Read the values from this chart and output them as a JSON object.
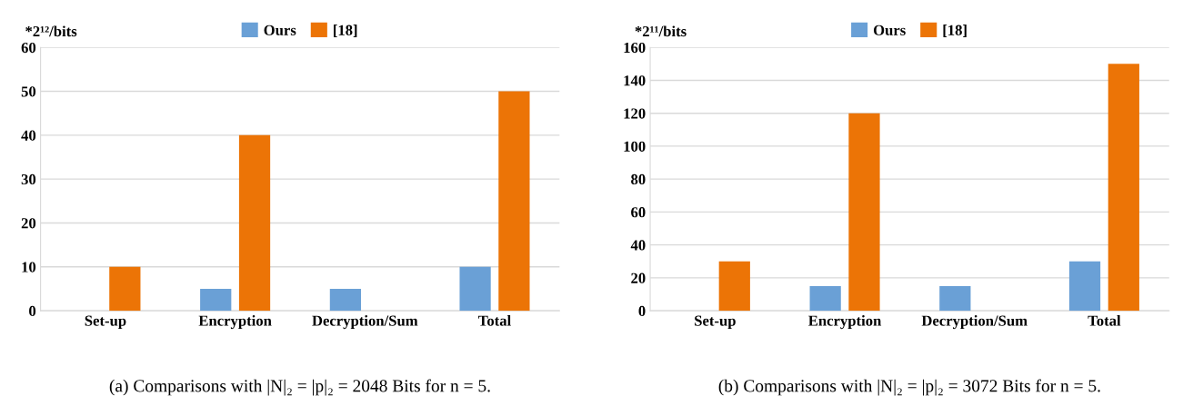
{
  "chart_data": [
    {
      "type": "bar",
      "categories": [
        "Set-up",
        "Encryption",
        "Decryption/Sum",
        "Total"
      ],
      "ylabel": "*2¹²/bits",
      "ylim": [
        0,
        60
      ],
      "yticks": [
        0,
        10,
        20,
        30,
        40,
        50,
        60
      ],
      "grid": "y",
      "legend": "top",
      "series": [
        {
          "name": "Ours",
          "color": "#6aa0d6",
          "values": [
            null,
            5,
            5,
            10
          ]
        },
        {
          "name": "[18]",
          "color": "#ec7406",
          "values": [
            10,
            40,
            null,
            50
          ]
        }
      ],
      "annotations": [
        "(a) Comparisons with |N|₂ = |p|₂ = 2048 Bits for n = 5."
      ]
    },
    {
      "type": "bar",
      "categories": [
        "Set-up",
        "Encryption",
        "Decryption/Sum",
        "Total"
      ],
      "ylabel": "*2¹¹/bits",
      "ylim": [
        0,
        160
      ],
      "yticks": [
        0,
        20,
        40,
        60,
        80,
        100,
        120,
        140,
        160
      ],
      "grid": "y",
      "legend": "top",
      "series": [
        {
          "name": "Ours",
          "color": "#6aa0d6",
          "values": [
            null,
            15,
            15,
            30
          ]
        },
        {
          "name": "[18]",
          "color": "#ec7406",
          "values": [
            30,
            120,
            null,
            150
          ]
        }
      ],
      "annotations": [
        "(b) Comparisons with |N|₂ = |p|₂ = 3072 Bits for n = 5."
      ]
    }
  ]
}
